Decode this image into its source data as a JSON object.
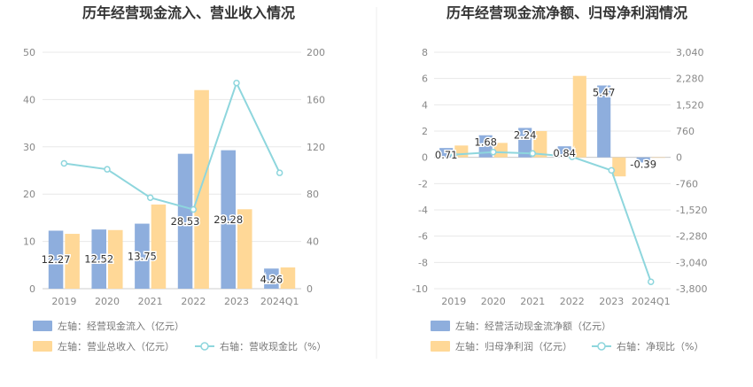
{
  "chart_data": [
    {
      "type": "bar",
      "title": "历年经营现金流入、营业收入情况",
      "categories": [
        "2019",
        "2020",
        "2021",
        "2022",
        "2023",
        "2024Q1"
      ],
      "series": [
        {
          "name": "左轴：经营现金流入（亿元）",
          "type": "bar",
          "axis": "left",
          "color": "#8eaedd",
          "values": [
            12.27,
            12.52,
            13.75,
            28.53,
            29.28,
            4.26
          ],
          "labels": [
            "12.27",
            "12.52",
            "13.75",
            "28.53",
            "29.28",
            "4.26"
          ]
        },
        {
          "name": "左轴：营业总收入（亿元）",
          "type": "bar",
          "axis": "left",
          "color": "#ffd897",
          "values": [
            11.6,
            12.4,
            17.8,
            42.0,
            16.8,
            4.5
          ]
        },
        {
          "name": "右轴：营收现金比（%）",
          "type": "line",
          "axis": "right",
          "color": "#8ed6dd",
          "values": [
            106,
            101,
            77,
            67,
            174,
            98
          ]
        }
      ],
      "left_axis": {
        "min": 0,
        "max": 50,
        "ticks": [
          "0",
          "10",
          "20",
          "30",
          "40",
          "50"
        ]
      },
      "right_axis": {
        "min": 0,
        "max": 200,
        "ticks": [
          "0",
          "40",
          "80",
          "120",
          "160",
          "200"
        ]
      },
      "grid": true,
      "legend": "bottom"
    },
    {
      "type": "bar",
      "title": "历年经营现金流净额、归母净利润情况",
      "categories": [
        "2019",
        "2020",
        "2021",
        "2022",
        "2023",
        "2024Q1"
      ],
      "series": [
        {
          "name": "左轴：经营活动现金流净额（亿元）",
          "type": "bar",
          "axis": "left",
          "color": "#8eaedd",
          "values": [
            0.71,
            1.68,
            2.24,
            0.84,
            5.47,
            -0.39
          ],
          "labels": [
            "0.71",
            "1.68",
            "2.24",
            "0.84",
            "5.47",
            "-0.39"
          ]
        },
        {
          "name": "左轴：归母净利润（亿元）",
          "type": "bar",
          "axis": "left",
          "color": "#ffd897",
          "values": [
            0.9,
            1.1,
            2.0,
            6.2,
            -1.45,
            -0.03
          ]
        },
        {
          "name": "右轴：净现比（%）",
          "type": "line",
          "axis": "right",
          "color": "#8ed6dd",
          "values": [
            79,
            153,
            112,
            14,
            -377,
            -3600
          ]
        }
      ],
      "left_axis": {
        "min": -10,
        "max": 8,
        "ticks": [
          "-10",
          "-8",
          "-6",
          "-4",
          "-2",
          "0",
          "2",
          "4",
          "6",
          "8"
        ]
      },
      "right_axis": {
        "min": -3800,
        "max": 3040,
        "ticks": [
          "-3,800",
          "-3,040",
          "-2,280",
          "-1,520",
          "-760",
          "0",
          "760",
          "1,520",
          "2,280",
          "3,040"
        ]
      },
      "grid": true,
      "legend": "bottom"
    }
  ]
}
